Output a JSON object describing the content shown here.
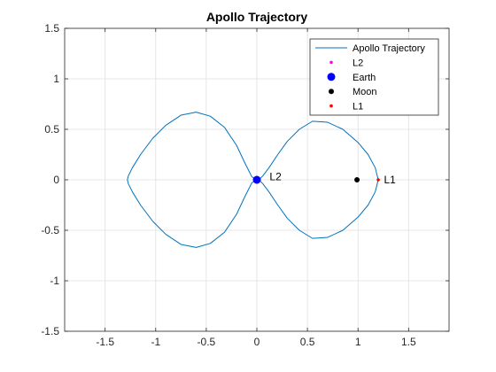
{
  "chart_data": {
    "type": "line",
    "title": "Apollo Trajectory",
    "xlabel": "",
    "ylabel": "",
    "xlim": [
      -1.9,
      1.9
    ],
    "ylim": [
      -1.5,
      1.5
    ],
    "xticks": [
      -1.5,
      -1,
      -0.5,
      0,
      0.5,
      1,
      1.5
    ],
    "yticks": [
      -1.5,
      -1,
      -0.5,
      0,
      0.5,
      1,
      1.5
    ],
    "grid": true,
    "legend_position": "top-right",
    "series": [
      {
        "name": "Apollo Trajectory",
        "kind": "line",
        "color": "#0072BD",
        "x": [
          0.02,
          0.06,
          0.12,
          0.2,
          0.3,
          0.42,
          0.55,
          0.7,
          0.85,
          1.0,
          1.1,
          1.17,
          1.2,
          1.17,
          1.1,
          1.0,
          0.85,
          0.7,
          0.55,
          0.42,
          0.3,
          0.2,
          0.12,
          0.06,
          0.02,
          -0.01,
          -0.05,
          -0.12,
          -0.2,
          -0.32,
          -0.46,
          -0.6,
          -0.75,
          -0.9,
          -1.03,
          -1.15,
          -1.23,
          -1.27,
          -1.28,
          -1.27,
          -1.23,
          -1.15,
          -1.03,
          -0.9,
          -0.75,
          -0.6,
          -0.46,
          -0.32,
          -0.2,
          -0.12,
          -0.05,
          -0.01,
          0.02
        ],
        "y": [
          0.0,
          0.04,
          0.12,
          0.24,
          0.38,
          0.5,
          0.58,
          0.57,
          0.5,
          0.37,
          0.25,
          0.12,
          0.0,
          -0.12,
          -0.25,
          -0.37,
          -0.5,
          -0.57,
          -0.58,
          -0.5,
          -0.38,
          -0.24,
          -0.12,
          -0.04,
          0.0,
          -0.005,
          -0.03,
          -0.17,
          -0.34,
          -0.52,
          -0.63,
          -0.67,
          -0.64,
          -0.54,
          -0.41,
          -0.25,
          -0.12,
          -0.04,
          0.0,
          0.04,
          0.12,
          0.25,
          0.41,
          0.54,
          0.64,
          0.67,
          0.63,
          0.52,
          0.34,
          0.17,
          0.03,
          0.005,
          0.0
        ]
      },
      {
        "name": "Earth",
        "kind": "marker",
        "color": "#0000FF",
        "x": [
          0.0
        ],
        "y": [
          0.0
        ]
      },
      {
        "name": "Moon",
        "kind": "marker",
        "color": "#000000",
        "x": [
          0.99
        ],
        "y": [
          0.0
        ]
      },
      {
        "name": "L1",
        "kind": "marker",
        "color": "#FF0000",
        "x": [
          1.2
        ],
        "y": [
          0.0
        ]
      },
      {
        "name": "L2",
        "kind": "marker",
        "color": "#FF00FF",
        "x": [
          0.0
        ],
        "y": [
          0.0
        ]
      }
    ],
    "annotations": [
      {
        "text": "L1",
        "x": 1.23,
        "y": 0.0
      },
      {
        "text": "L2",
        "x": 0.1,
        "y": 0.03
      }
    ]
  }
}
